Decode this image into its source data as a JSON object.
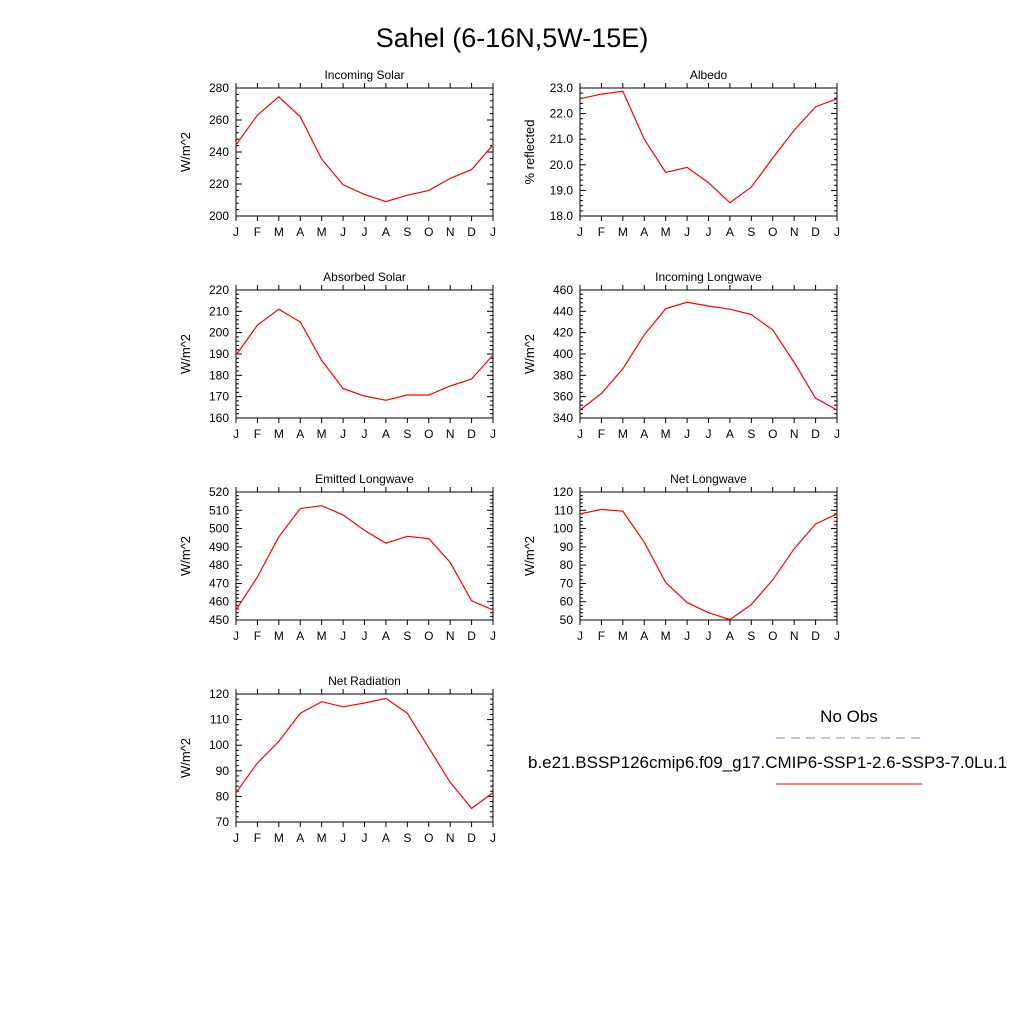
{
  "figure": {
    "title": "Sahel (6-16N,5W-15E)",
    "legend": {
      "obs_label": "No Obs",
      "model_label": "b.e21.BSSP126cmip6.f09_g17.CMIP6-SSP1-2.6-SSP3-7.0Lu.1",
      "obs_color": "#8080ff",
      "model_color": "#ff0000"
    }
  },
  "chart_data": [
    {
      "type": "line",
      "title": "Incoming Solar",
      "ylabel": "W/m^2",
      "xlabel": "",
      "categories": [
        "J",
        "F",
        "M",
        "A",
        "M",
        "J",
        "J",
        "A",
        "S",
        "O",
        "N",
        "D",
        "J"
      ],
      "ylim": [
        200,
        280
      ],
      "yticks": [
        "200",
        "220",
        "240",
        "260",
        "280"
      ],
      "series": [
        {
          "color": "#ff0000",
          "values": [
            244.5,
            263,
            274.5,
            262,
            235.5,
            219.5,
            213.5,
            209,
            213,
            216,
            223.5,
            229,
            244.5
          ]
        }
      ],
      "grid": false
    },
    {
      "type": "line",
      "title": "Albedo",
      "ylabel": "% reflected",
      "xlabel": "",
      "categories": [
        "J",
        "F",
        "M",
        "A",
        "M",
        "J",
        "J",
        "A",
        "S",
        "O",
        "N",
        "D",
        "J"
      ],
      "ylim": [
        18,
        23
      ],
      "yticks": [
        "18.0",
        "19.0",
        "20.0",
        "21.0",
        "22.0",
        "23.0"
      ],
      "series": [
        {
          "color": "#ff0000",
          "values": [
            22.58,
            22.76,
            22.87,
            21.0,
            19.7,
            19.9,
            19.3,
            18.52,
            19.13,
            20.27,
            21.35,
            22.27,
            22.58
          ]
        }
      ],
      "grid": false
    },
    {
      "type": "line",
      "title": "Absorbed Solar",
      "ylabel": "W/m^2",
      "xlabel": "",
      "categories": [
        "J",
        "F",
        "M",
        "A",
        "M",
        "J",
        "J",
        "A",
        "S",
        "O",
        "N",
        "D",
        "J"
      ],
      "ylim": [
        160,
        220
      ],
      "yticks": [
        "160",
        "170",
        "180",
        "190",
        "200",
        "210",
        "220"
      ],
      "series": [
        {
          "color": "#ff0000",
          "values": [
            189.5,
            203.5,
            211,
            205,
            187,
            173.8,
            170.3,
            168.3,
            170.8,
            170.8,
            175,
            178.3,
            189.5
          ]
        }
      ],
      "grid": false
    },
    {
      "type": "line",
      "title": "Incoming Longwave",
      "ylabel": "W/m^2",
      "xlabel": "",
      "categories": [
        "J",
        "F",
        "M",
        "A",
        "M",
        "J",
        "J",
        "A",
        "S",
        "O",
        "N",
        "D",
        "J"
      ],
      "ylim": [
        340,
        460
      ],
      "yticks": [
        "340",
        "360",
        "380",
        "400",
        "420",
        "440",
        "460"
      ],
      "series": [
        {
          "color": "#ff0000",
          "values": [
            347.5,
            363,
            386,
            418,
            442.5,
            448.5,
            445,
            442,
            437,
            422.5,
            392,
            358.5,
            347.5
          ]
        }
      ],
      "grid": false
    },
    {
      "type": "line",
      "title": "Emitted Longwave",
      "ylabel": "W/m^2",
      "xlabel": "",
      "categories": [
        "J",
        "F",
        "M",
        "A",
        "M",
        "J",
        "J",
        "A",
        "S",
        "O",
        "N",
        "D",
        "J"
      ],
      "ylim": [
        450,
        520
      ],
      "yticks": [
        "450",
        "460",
        "470",
        "480",
        "490",
        "500",
        "510",
        "520"
      ],
      "series": [
        {
          "color": "#ff0000",
          "values": [
            455.5,
            473.5,
            495.5,
            511,
            512.5,
            507.5,
            499,
            492,
            495.8,
            494.5,
            481.5,
            460.5,
            455.5
          ]
        }
      ],
      "grid": false
    },
    {
      "type": "line",
      "title": "Net Longwave",
      "ylabel": "W/m^2",
      "xlabel": "",
      "categories": [
        "J",
        "F",
        "M",
        "A",
        "M",
        "J",
        "J",
        "A",
        "S",
        "O",
        "N",
        "D",
        "J"
      ],
      "ylim": [
        50,
        120
      ],
      "yticks": [
        "50",
        "60",
        "70",
        "80",
        "90",
        "100",
        "110",
        "120"
      ],
      "series": [
        {
          "color": "#ff0000",
          "values": [
            108,
            110.5,
            109.5,
            92.5,
            70.5,
            59.5,
            54,
            50.2,
            58.5,
            72,
            89,
            102.5,
            108
          ]
        }
      ],
      "grid": false
    },
    {
      "type": "line",
      "title": "Net Radiation",
      "ylabel": "W/m^2",
      "xlabel": "",
      "categories": [
        "J",
        "F",
        "M",
        "A",
        "M",
        "J",
        "J",
        "A",
        "S",
        "O",
        "N",
        "D",
        "J"
      ],
      "ylim": [
        70,
        120
      ],
      "yticks": [
        "70",
        "80",
        "90",
        "100",
        "110",
        "120"
      ],
      "series": [
        {
          "color": "#ff0000",
          "values": [
            81.5,
            93,
            101.5,
            112.5,
            117,
            115,
            116.5,
            118.3,
            112.5,
            99,
            85.5,
            75.3,
            81.5
          ]
        }
      ],
      "grid": false
    }
  ]
}
